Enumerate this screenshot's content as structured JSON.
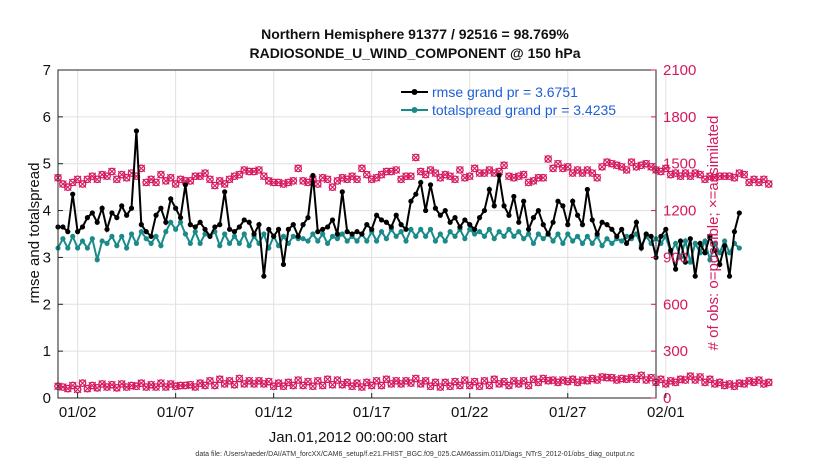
{
  "chart_data": {
    "type": "line",
    "title": "Northern Hemisphere 91377 / 92516 = 98.769%",
    "subtitle": "RADIOSONDE_U_WIND_COMPONENT @ 150 hPa",
    "xlabel": "Jan.01,2012 00:00:00 start",
    "ylabel": "rmse and totalspread",
    "ylabel_right": "# of obs: o=possible; ×=assimilated",
    "footnote": "data file: /Users/raeder/DAI/ATM_forcXX/CAM6_setup/f.e21.FHIST_BGC.f09_025.CAM6assim.011/Diags_NTrS_2012-01/obs_diag_output.nc",
    "xlim": [
      0.5,
      31.0
    ],
    "ylim": [
      0,
      7
    ],
    "ylim_right": [
      0,
      2100
    ],
    "x_ticks": [
      1.5,
      6.5,
      11.5,
      16.5,
      21.5,
      26.5,
      31.5
    ],
    "x_tick_labels": [
      "01/02",
      "01/07",
      "01/12",
      "01/17",
      "01/22",
      "01/27",
      "02/01"
    ],
    "y_ticks": [
      0,
      1,
      2,
      3,
      4,
      5,
      6,
      7
    ],
    "y_tick_labels": [
      "0",
      "1",
      "2",
      "3",
      "4",
      "5",
      "6",
      "7"
    ],
    "y_ticks_right": [
      0,
      300,
      600,
      900,
      1200,
      1500,
      1800,
      2100
    ],
    "y_tick_labels_right": [
      "0",
      "300",
      "600",
      "900",
      "1200",
      "1500",
      "1800",
      "2100"
    ],
    "grid": true,
    "legend": {
      "position": "top-right",
      "entries": [
        "rmse grand pr = 3.6751",
        "totalspread grand pr = 3.4235"
      ]
    },
    "colors": {
      "rmse": "#000000",
      "spread": "#1a8a8a",
      "obs": "#d6185f",
      "legend_text": "#1f5fd6",
      "grid": "#e0e0e0"
    },
    "x_start": 0.5,
    "x_step": 0.25,
    "series": [
      {
        "name": "rmse grand pr = 3.6751",
        "axis": "left",
        "values": [
          3.65,
          3.65,
          3.55,
          4.35,
          3.55,
          3.65,
          3.85,
          3.95,
          3.75,
          4.05,
          3.6,
          3.95,
          3.85,
          4.1,
          3.9,
          4.05,
          5.7,
          3.7,
          3.55,
          3.45,
          3.9,
          4.05,
          3.75,
          4.25,
          4.05,
          3.85,
          4.55,
          3.7,
          3.65,
          3.75,
          3.6,
          3.45,
          3.65,
          3.7,
          4.4,
          3.6,
          3.55,
          3.65,
          3.8,
          3.75,
          3.5,
          3.7,
          2.6,
          3.6,
          3.45,
          3.6,
          2.85,
          3.6,
          3.7,
          3.45,
          3.7,
          3.85,
          4.75,
          3.55,
          3.6,
          3.65,
          3.8,
          3.5,
          4.4,
          3.55,
          3.5,
          3.55,
          3.5,
          3.7,
          3.6,
          3.9,
          3.8,
          3.75,
          3.65,
          3.9,
          3.7,
          3.6,
          4.2,
          4.35,
          4.6,
          4.0,
          4.55,
          4.05,
          3.9,
          4.0,
          3.75,
          3.85,
          3.65,
          3.8,
          3.7,
          3.6,
          3.85,
          4.0,
          4.45,
          4.1,
          4.75,
          4.1,
          3.9,
          4.3,
          3.75,
          4.2,
          3.6,
          3.85,
          4.0,
          3.7,
          3.5,
          3.75,
          4.2,
          4.1,
          3.7,
          4.2,
          3.9,
          3.7,
          4.45,
          3.8,
          3.5,
          3.75,
          3.7,
          3.6,
          3.45,
          3.6,
          3.3,
          3.45,
          3.75,
          3.2,
          3.5,
          3.45,
          3.0,
          3.45,
          3.6,
          3.15,
          2.75,
          3.35,
          2.9,
          3.4,
          2.6,
          3.3,
          3.1,
          3.45,
          3.15,
          2.85,
          3.25,
          2.6,
          3.55,
          3.95
        ]
      },
      {
        "name": "totalspread grand pr = 3.4235",
        "axis": "left",
        "values": [
          3.2,
          3.4,
          3.2,
          3.45,
          3.2,
          3.35,
          3.2,
          3.4,
          2.95,
          3.35,
          3.3,
          3.45,
          3.25,
          3.45,
          3.2,
          3.5,
          3.3,
          3.55,
          3.4,
          3.3,
          3.45,
          3.25,
          3.55,
          3.75,
          3.6,
          3.75,
          3.5,
          3.3,
          3.55,
          3.3,
          3.5,
          3.45,
          3.55,
          3.25,
          3.5,
          3.3,
          3.45,
          3.3,
          3.5,
          3.25,
          3.45,
          3.3,
          3.5,
          3.2,
          3.45,
          3.25,
          3.45,
          3.3,
          3.45,
          3.4,
          3.4,
          3.35,
          3.5,
          3.35,
          3.5,
          3.3,
          3.45,
          3.4,
          3.5,
          3.35,
          3.45,
          3.35,
          3.5,
          3.35,
          3.55,
          3.35,
          3.55,
          3.4,
          3.6,
          3.45,
          3.55,
          3.35,
          3.6,
          3.45,
          3.6,
          3.45,
          3.6,
          3.35,
          3.5,
          3.35,
          3.55,
          3.45,
          3.6,
          3.4,
          3.6,
          3.5,
          3.55,
          3.45,
          3.6,
          3.4,
          3.55,
          3.45,
          3.6,
          3.45,
          3.55,
          3.4,
          3.5,
          3.3,
          3.5,
          3.4,
          3.5,
          3.35,
          3.5,
          3.3,
          3.5,
          3.35,
          3.45,
          3.3,
          3.45,
          3.3,
          3.45,
          3.25,
          3.4,
          3.3,
          3.4,
          3.35,
          3.45,
          3.4,
          3.5,
          3.25,
          3.45,
          3.3,
          3.4,
          3.3,
          3.45,
          3.1,
          3.3,
          3.0,
          3.35,
          2.9,
          3.3,
          3.1,
          3.35,
          2.95,
          3.3,
          3.1,
          3.35,
          3.1,
          3.3,
          3.2
        ]
      },
      {
        "name": "possible observations",
        "axis": "right",
        "values": [
          1410,
          1370,
          1350,
          1380,
          1400,
          1370,
          1400,
          1420,
          1400,
          1430,
          1420,
          1450,
          1400,
          1430,
          1410,
          1440,
          1420,
          1470,
          1380,
          1400,
          1380,
          1430,
          1390,
          1410,
          1370,
          1400,
          1390,
          1390,
          1420,
          1420,
          1440,
          1400,
          1360,
          1390,
          1370,
          1400,
          1420,
          1430,
          1460,
          1450,
          1450,
          1460,
          1420,
          1390,
          1380,
          1380,
          1370,
          1380,
          1390,
          1470,
          1390,
          1380,
          1400,
          1370,
          1410,
          1400,
          1350,
          1390,
          1410,
          1400,
          1420,
          1400,
          1470,
          1430,
          1400,
          1410,
          1430,
          1450,
          1450,
          1460,
          1400,
          1420,
          1420,
          1540,
          1450,
          1430,
          1460,
          1440,
          1410,
          1430,
          1420,
          1400,
          1460,
          1410,
          1420,
          1470,
          1440,
          1440,
          1460,
          1440,
          1450,
          1490,
          1420,
          1410,
          1420,
          1430,
          1380,
          1390,
          1410,
          1410,
          1530,
          1470,
          1500,
          1470,
          1480,
          1440,
          1460,
          1440,
          1460,
          1440,
          1410,
          1480,
          1510,
          1500,
          1490,
          1480,
          1460,
          1510,
          1480,
          1490,
          1500,
          1480,
          1460,
          1450,
          1470,
          1430,
          1440,
          1420,
          1440,
          1420,
          1440,
          1430,
          1400,
          1420,
          1410,
          1420,
          1420,
          1420,
          1410,
          1440,
          1430,
          1380,
          1400,
          1380,
          1400,
          1370
        ]
      },
      {
        "name": "assimilated observations",
        "axis": "right",
        "values": [
          75,
          70,
          60,
          80,
          55,
          95,
          60,
          80,
          65,
          90,
          70,
          85,
          65,
          90,
          70,
          80,
          75,
          95,
          70,
          85,
          70,
          95,
          70,
          90,
          75,
          80,
          80,
          85,
          70,
          95,
          80,
          110,
          80,
          120,
          90,
          110,
          85,
          125,
          90,
          110,
          90,
          110,
          90,
          105,
          75,
          95,
          75,
          100,
          80,
          115,
          80,
          105,
          75,
          110,
          80,
          120,
          85,
          115,
          85,
          100,
          75,
          95,
          70,
          100,
          80,
          110,
          80,
          120,
          90,
          110,
          90,
          110,
          95,
          125,
          90,
          110,
          75,
          100,
          70,
          100,
          75,
          105,
          80,
          115,
          80,
          105,
          75,
          110,
          80,
          120,
          90,
          105,
          80,
          110,
          90,
          110,
          80,
          120,
          100,
          125,
          110,
          115,
          100,
          115,
          105,
          120,
          100,
          115,
          110,
          125,
          115,
          135,
          130,
          130,
          115,
          125,
          120,
          130,
          120,
          145,
          115,
          130,
          100,
          120,
          90,
          110,
          100,
          120,
          115,
          140,
          115,
          135,
          100,
          120,
          90,
          100,
          80,
          90,
          75,
          95,
          90,
          110,
          100,
          115,
          90,
          100
        ]
      }
    ]
  }
}
